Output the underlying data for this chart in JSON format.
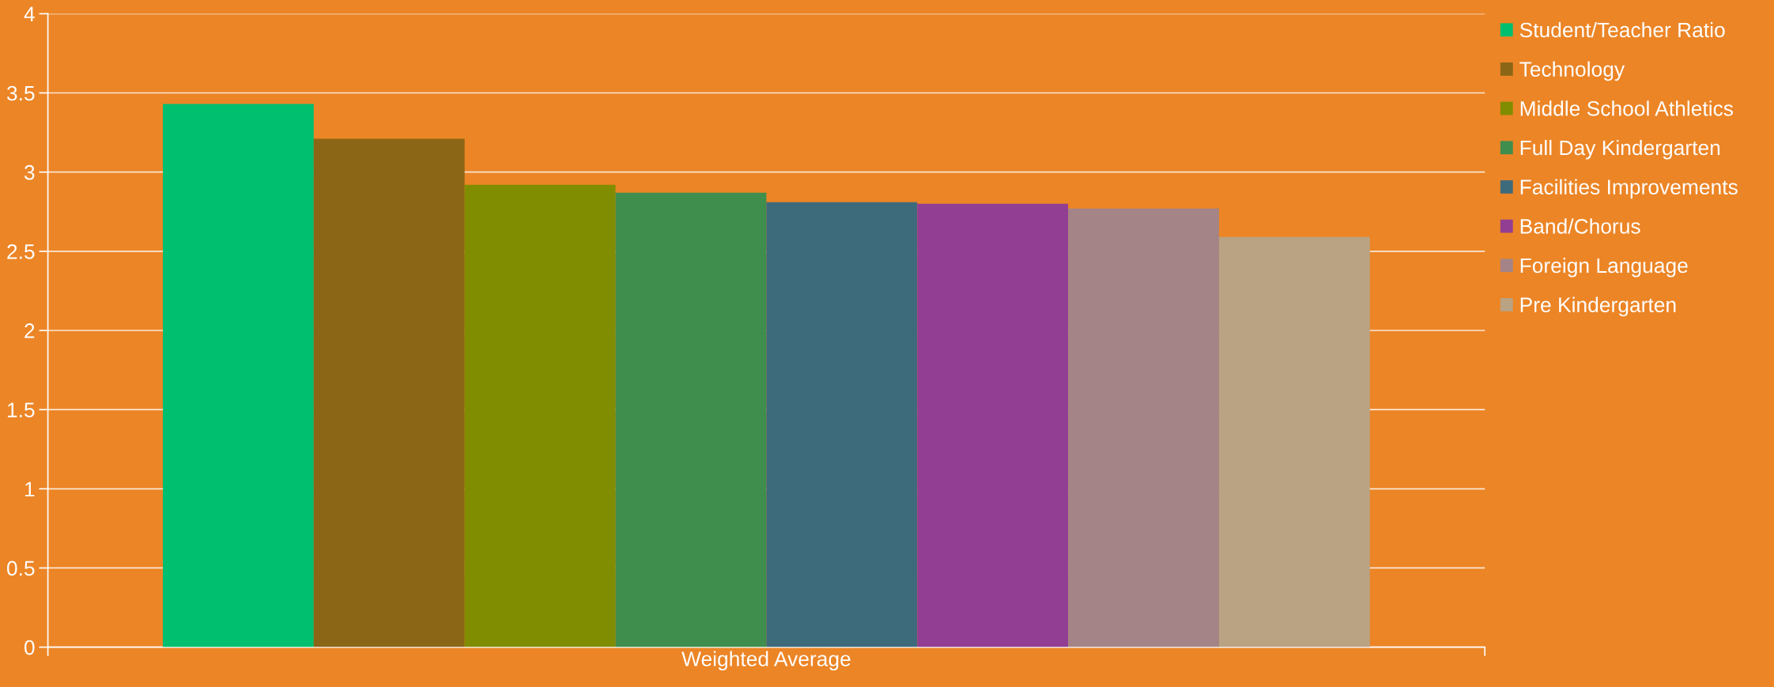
{
  "chart_data": {
    "type": "bar",
    "categories": [
      "Weighted Average"
    ],
    "series": [
      {
        "name": "Student/Teacher Ratio",
        "color": "#00bf6f",
        "values": [
          3.43
        ]
      },
      {
        "name": "Technology",
        "color": "#8b6616",
        "values": [
          3.21
        ]
      },
      {
        "name": "Middle School Athletics",
        "color": "#818d00",
        "values": [
          2.92
        ]
      },
      {
        "name": "Full Day Kindergarten",
        "color": "#3f8e4e",
        "values": [
          2.87
        ]
      },
      {
        "name": "Facilities Improvements",
        "color": "#3e6b7c",
        "values": [
          2.81
        ]
      },
      {
        "name": "Band/Chorus",
        "color": "#923e92",
        "values": [
          2.8
        ]
      },
      {
        "name": "Foreign Language",
        "color": "#a48486",
        "values": [
          2.77
        ]
      },
      {
        "name": "Pre Kindergarten",
        "color": "#b9a383",
        "values": [
          2.59
        ]
      }
    ],
    "ylim": [
      0,
      4
    ],
    "yticks": [
      0,
      0.5,
      1,
      1.5,
      2,
      2.5,
      3,
      3.5,
      4
    ],
    "grid": "y",
    "legend": "right"
  }
}
